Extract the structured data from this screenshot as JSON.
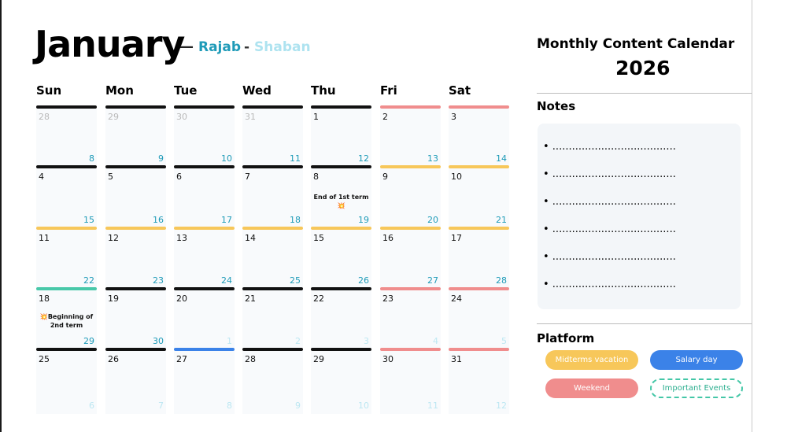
{
  "header": {
    "month": "January",
    "dash": "—",
    "hijri_month_1": "Rajab",
    "hijri_sep": "-",
    "hijri_month_2": "Shaban"
  },
  "weekdays": [
    "Sun",
    "Mon",
    "Tue",
    "Wed",
    "Thu",
    "Fri",
    "Sat"
  ],
  "colors": {
    "black": "#111111",
    "yellow": "#f7c75a",
    "pink": "#f08d8d",
    "teal": "#48c8a9",
    "blue": "#3b82e8",
    "hijri": "#1f9bb8",
    "hijri_faded": "#bde7f2",
    "gray_faded": "#b9b9b9"
  },
  "weeks": [
    {
      "days": [
        {
          "g": "28",
          "faded": true,
          "bar": "black"
        },
        {
          "g": "29",
          "faded": true,
          "bar": "black"
        },
        {
          "g": "30",
          "faded": true,
          "bar": "black"
        },
        {
          "g": "31",
          "faded": true,
          "bar": "black"
        },
        {
          "g": "1",
          "bar": "black"
        },
        {
          "g": "2",
          "bar": "pink"
        },
        {
          "g": "3",
          "bar": "pink"
        }
      ]
    },
    {
      "days": [
        {
          "g": "4",
          "h": "8",
          "bar": "black"
        },
        {
          "g": "5",
          "h": "9",
          "bar": "black"
        },
        {
          "g": "6",
          "h": "10",
          "bar": "black"
        },
        {
          "g": "7",
          "h": "11",
          "bar": "black"
        },
        {
          "g": "8",
          "h": "12",
          "bar": "black",
          "event": "End of 1st term💥"
        },
        {
          "g": "9",
          "h": "13",
          "bar": "yellow"
        },
        {
          "g": "10",
          "h": "14",
          "bar": "yellow"
        }
      ]
    },
    {
      "days": [
        {
          "g": "11",
          "h": "15",
          "bar": "yellow"
        },
        {
          "g": "12",
          "h": "16",
          "bar": "yellow"
        },
        {
          "g": "13",
          "h": "17",
          "bar": "yellow"
        },
        {
          "g": "14",
          "h": "18",
          "bar": "yellow"
        },
        {
          "g": "15",
          "h": "19",
          "bar": "yellow"
        },
        {
          "g": "16",
          "h": "20",
          "bar": "yellow"
        },
        {
          "g": "17",
          "h": "21",
          "bar": "yellow"
        }
      ]
    },
    {
      "days": [
        {
          "g": "18",
          "h": "22",
          "bar": "teal",
          "event": "💥Beginning of 2nd term"
        },
        {
          "g": "19",
          "h": "23",
          "bar": "black"
        },
        {
          "g": "20",
          "h": "24",
          "bar": "black"
        },
        {
          "g": "21",
          "h": "25",
          "bar": "black"
        },
        {
          "g": "22",
          "h": "26",
          "bar": "black"
        },
        {
          "g": "23",
          "h": "27",
          "bar": "pink"
        },
        {
          "g": "24",
          "h": "28",
          "bar": "pink"
        }
      ]
    },
    {
      "days": [
        {
          "g": "25",
          "h": "29",
          "bar": "black"
        },
        {
          "g": "26",
          "h": "30",
          "bar": "black"
        },
        {
          "g": "27",
          "h": "1",
          "h_faded": true,
          "bar": "blue"
        },
        {
          "g": "28",
          "h": "2",
          "h_faded": true,
          "bar": "black"
        },
        {
          "g": "29",
          "h": "3",
          "h_faded": true,
          "bar": "black"
        },
        {
          "g": "30",
          "h": "4",
          "h_faded": true,
          "bar": "pink"
        },
        {
          "g": "31",
          "h": "5",
          "h_faded": true,
          "bar": "pink"
        }
      ]
    },
    {
      "days": [
        {
          "h": "6",
          "h_faded": true
        },
        {
          "h": "7",
          "h_faded": true
        },
        {
          "h": "8",
          "h_faded": true
        },
        {
          "h": "9",
          "h_faded": true
        },
        {
          "h": "10",
          "h_faded": true
        },
        {
          "h": "11",
          "h_faded": true
        },
        {
          "h": "12",
          "h_faded": true
        }
      ]
    }
  ],
  "panel": {
    "title": "Monthly Content Calendar",
    "year": "2026",
    "notes_title": "Notes",
    "note_bullet": "• ......................................",
    "note_count": 6,
    "platform_title": "Platform",
    "legend": [
      {
        "label": "Midterms vacation",
        "color": "#f7c75a",
        "style": "solid"
      },
      {
        "label": "Salary day",
        "color": "#3b82e8",
        "style": "solid"
      },
      {
        "label": "Weekend",
        "color": "#f08d8d",
        "style": "solid"
      },
      {
        "label": "Important Events",
        "color": "#44c7a7",
        "style": "dashed"
      }
    ]
  }
}
